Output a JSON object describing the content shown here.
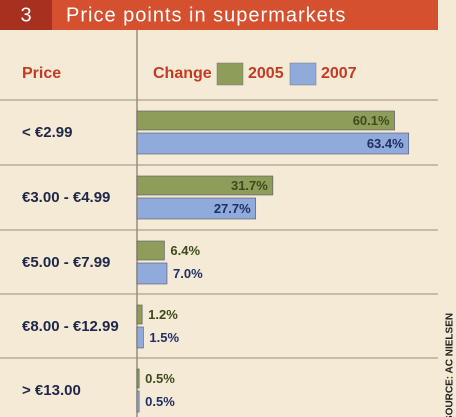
{
  "chart_data": {
    "type": "bar",
    "orientation": "horizontal",
    "number": "3",
    "title": "Price points in supermarkets",
    "category_header": "Price",
    "legend_title": "Change",
    "source": "SOURCE: AC NIELSEN",
    "categories": [
      "< €2.99",
      "€3.00 - €4.99",
      "€5.00 - €7.99",
      "€8.00 - €12.99",
      "> €13.00"
    ],
    "series": [
      {
        "name": "2005",
        "color": "#8e9d5a",
        "label_color": "#3d4a1c",
        "values": [
          60.1,
          31.7,
          6.4,
          1.2,
          0.5
        ],
        "value_labels": [
          "60.1%",
          "31.7%",
          "6.4%",
          "1.2%",
          "0.5%"
        ]
      },
      {
        "name": "2007",
        "color": "#8faadb",
        "label_color": "#1f2f66",
        "values": [
          63.4,
          27.7,
          7.0,
          1.5,
          0.5
        ],
        "value_labels": [
          "63.4%",
          "27.7%",
          "7.0%",
          "1.5%",
          "0.5%"
        ]
      }
    ],
    "xlim": [
      0,
      70
    ]
  }
}
